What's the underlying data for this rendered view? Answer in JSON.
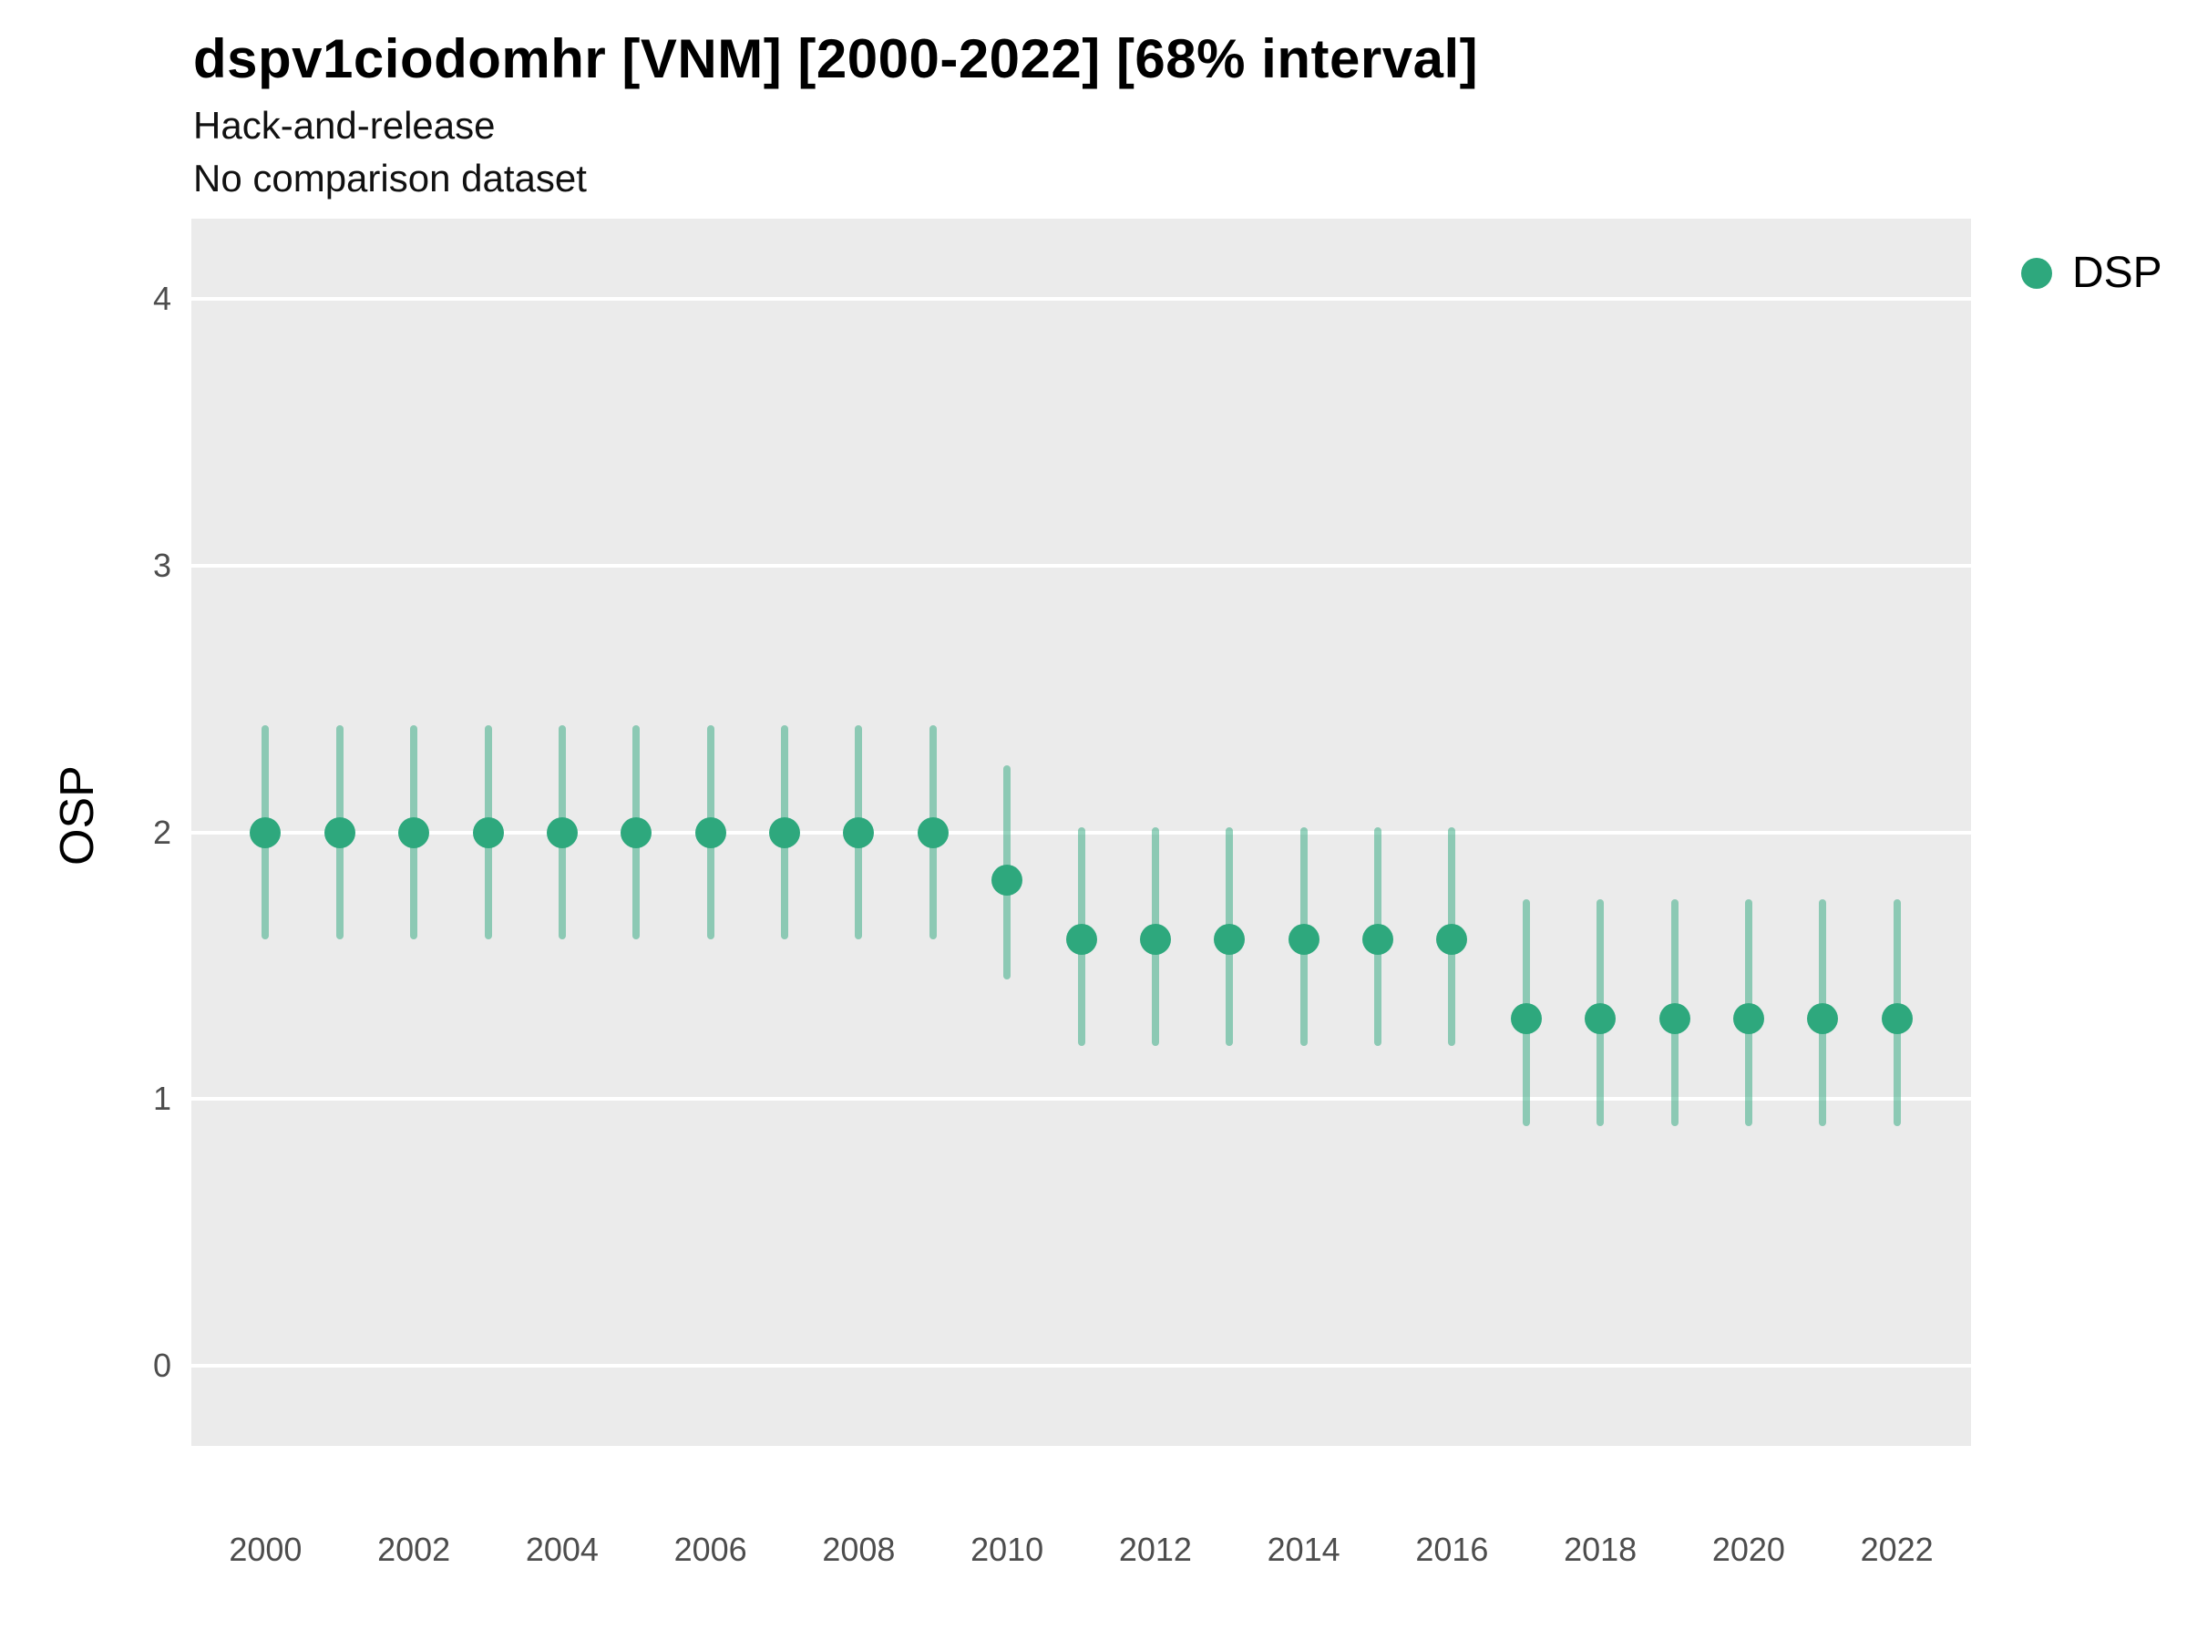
{
  "header": {
    "title": "dspv1ciodomhr [VNM] [2000-2022] [68% interval]",
    "subtitle1": "Hack-and-release",
    "subtitle2": "No comparison dataset"
  },
  "legend": {
    "items": [
      {
        "label": "DSP",
        "color": "#2EA87D"
      }
    ]
  },
  "chart_data": {
    "type": "pointrange-scatter",
    "title": "dspv1ciodomhr [VNM] [2000-2022] [68% interval]",
    "subtitle": [
      "Hack-and-release",
      "No comparison dataset"
    ],
    "xlabel": "",
    "ylabel": "OSP",
    "x": [
      2000,
      2001,
      2002,
      2003,
      2004,
      2005,
      2006,
      2007,
      2008,
      2009,
      2010,
      2011,
      2012,
      2013,
      2014,
      2015,
      2016,
      2017,
      2018,
      2019,
      2020,
      2021,
      2022
    ],
    "series": [
      {
        "name": "DSP",
        "values": [
          2.0,
          2.0,
          2.0,
          2.0,
          2.0,
          2.0,
          2.0,
          2.0,
          2.0,
          2.0,
          1.82,
          1.6,
          1.6,
          1.6,
          1.6,
          1.6,
          1.6,
          1.3,
          1.3,
          1.3,
          1.3,
          1.3,
          1.3
        ],
        "lower": [
          1.6,
          1.6,
          1.6,
          1.6,
          1.6,
          1.6,
          1.6,
          1.6,
          1.6,
          1.6,
          1.45,
          1.2,
          1.2,
          1.2,
          1.2,
          1.2,
          1.2,
          0.9,
          0.9,
          0.9,
          0.9,
          0.9,
          0.9
        ],
        "upper": [
          2.4,
          2.4,
          2.4,
          2.4,
          2.4,
          2.4,
          2.4,
          2.4,
          2.4,
          2.4,
          2.25,
          2.02,
          2.02,
          2.02,
          2.02,
          2.02,
          2.02,
          1.75,
          1.75,
          1.75,
          1.75,
          1.75,
          1.75
        ]
      }
    ],
    "x_ticks": [
      2000,
      2002,
      2004,
      2006,
      2008,
      2010,
      2012,
      2014,
      2016,
      2018,
      2020,
      2022
    ],
    "y_ticks": [
      0,
      1,
      2,
      3,
      4
    ],
    "xlim": [
      1999,
      2023
    ],
    "ylim": [
      -0.3,
      4.3
    ],
    "grid": "major-horizontal-white",
    "legend_position": "right-top",
    "colors": {
      "point": "#2EA87D",
      "range_bar": "rgba(46, 168, 125, 0.5)",
      "plot_background": "#EBEBEB",
      "gridline": "#FFFFFF"
    }
  }
}
